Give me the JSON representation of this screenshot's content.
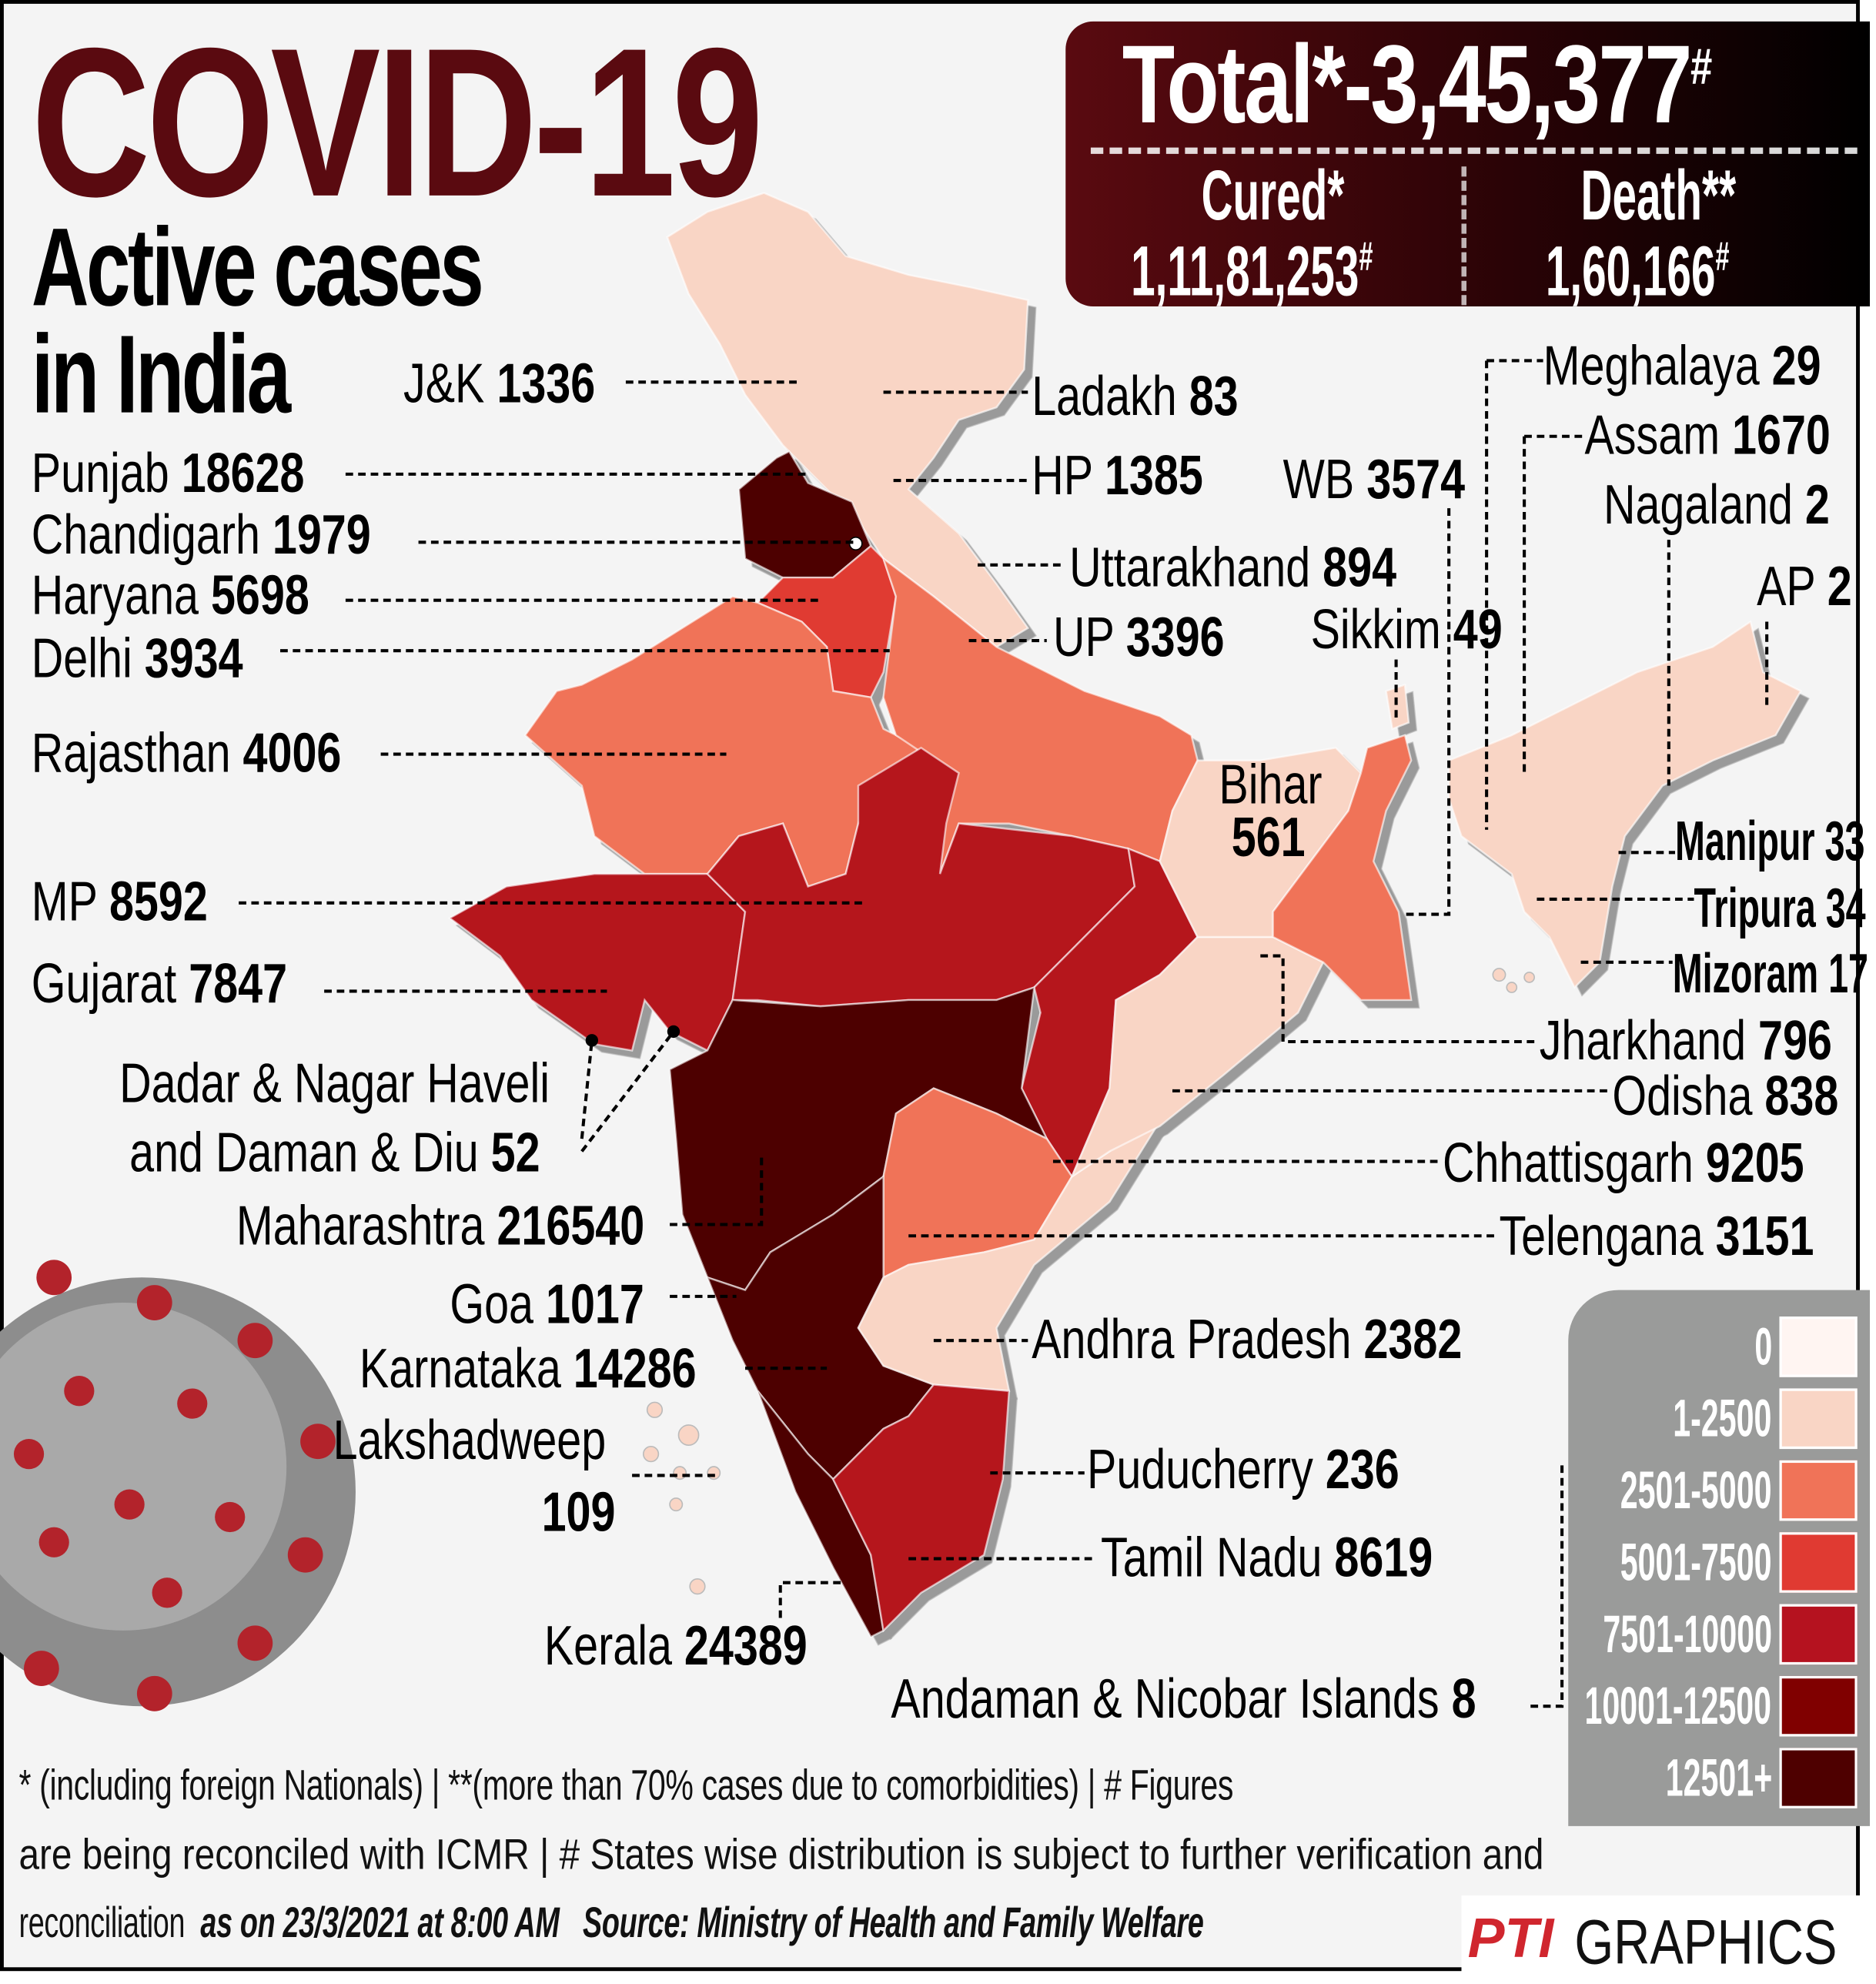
{
  "title": "COVID-19",
  "subtitle_line1": "Active cases",
  "subtitle_line2": "in India",
  "stats": {
    "total_label": "Total*-3,45,377",
    "total_mark": "#",
    "cured_label": "Cured*",
    "cured_value": "1,11,81,253",
    "cured_mark": "#",
    "death_label": "Death**",
    "death_value": "1,60,166",
    "death_mark": "#"
  },
  "states": [
    {
      "name": "J&K",
      "value": "1336"
    },
    {
      "name": "Ladakh",
      "value": "83"
    },
    {
      "name": "Punjab",
      "value": "18628"
    },
    {
      "name": "HP",
      "value": "1385"
    },
    {
      "name": "WB",
      "value": "3574"
    },
    {
      "name": "Meghalaya",
      "value": "29"
    },
    {
      "name": "Assam",
      "value": "1670"
    },
    {
      "name": "Nagaland",
      "value": "2"
    },
    {
      "name": "AP",
      "value": "2"
    },
    {
      "name": "Chandigarh",
      "value": "1979"
    },
    {
      "name": "Haryana",
      "value": "5698"
    },
    {
      "name": "Uttarakhand",
      "value": "894"
    },
    {
      "name": "Delhi",
      "value": "3934"
    },
    {
      "name": "UP",
      "value": "3396"
    },
    {
      "name": "Sikkim",
      "value": "49"
    },
    {
      "name": "Rajasthan",
      "value": "4006"
    },
    {
      "name": "Bihar",
      "value": "561"
    },
    {
      "name": "Manipur",
      "value": "33"
    },
    {
      "name": "Tripura",
      "value": "34"
    },
    {
      "name": "Mizoram",
      "value": "17"
    },
    {
      "name": "MP",
      "value": "8592"
    },
    {
      "name": "Gujarat",
      "value": "7847"
    },
    {
      "name": "Jharkhand",
      "value": "796"
    },
    {
      "name": "Odisha",
      "value": "838"
    },
    {
      "name": "Dadar & Nagar Haveli",
      "name2": "and Daman & Diu",
      "value": "52"
    },
    {
      "name": "Chhattisgarh",
      "value": "9205"
    },
    {
      "name": "Maharashtra",
      "value": "216540"
    },
    {
      "name": "Telengana",
      "value": "3151"
    },
    {
      "name": "Goa",
      "value": "1017"
    },
    {
      "name": "Andhra Pradesh",
      "value": "2382"
    },
    {
      "name": "Karnataka",
      "value": "14286"
    },
    {
      "name": "Lakshadweep",
      "value": "109"
    },
    {
      "name": "Puducherry",
      "value": "236"
    },
    {
      "name": "Tamil Nadu",
      "value": "8619"
    },
    {
      "name": "Kerala",
      "value": "24389"
    },
    {
      "name": "Andaman & Nicobar Islands",
      "value": "8"
    }
  ],
  "legend": [
    {
      "label": "0",
      "color": "#fff5f2"
    },
    {
      "label": "1-2500",
      "color": "#f9d5c5"
    },
    {
      "label": "2501-5000",
      "color": "#f07358"
    },
    {
      "label": "5001-7500",
      "color": "#e03a32"
    },
    {
      "label": "7501-10000",
      "color": "#b5121f"
    },
    {
      "label": "10001-12500",
      "color": "#800000"
    },
    {
      "label": "12501+",
      "color": "#4e0000"
    }
  ],
  "footer": {
    "line1": "* (including foreign Nationals) | **(more than 70% cases due to comorbidities) | # Figures",
    "line2": "are being reconciled with ICMR  | # States wise distribution is subject to further verification and",
    "line3_plain": "reconciliation",
    "line3_date": "as on 23/3/2021 at 8:00 AM",
    "line3_source": "Source: Ministry of Health and Family Welfare"
  },
  "branding": {
    "logo": "PTI",
    "text": "GRAPHICS"
  }
}
